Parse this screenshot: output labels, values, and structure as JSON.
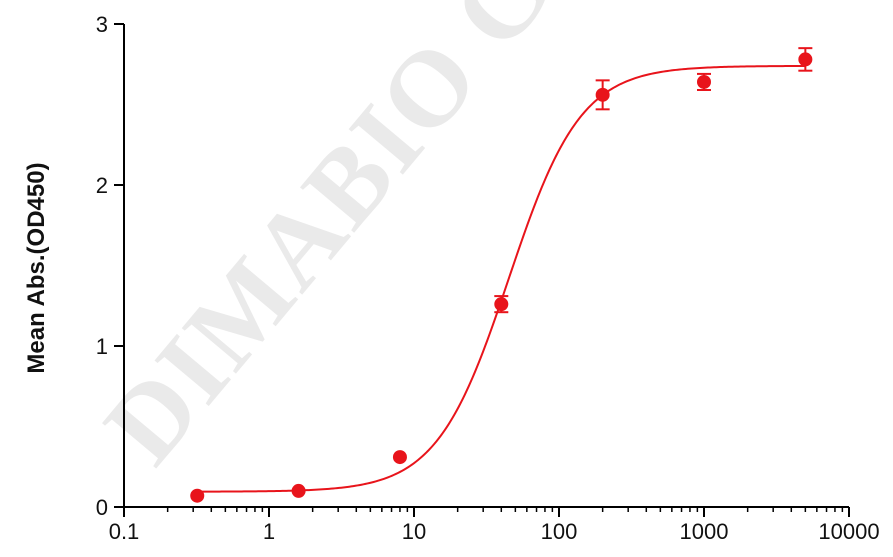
{
  "chart_data": {
    "type": "scatter",
    "title": "",
    "xlabel": "",
    "ylabel": "Mean Abs.(OD450)",
    "x_scale": "log",
    "xlim": [
      0.1,
      10000
    ],
    "ylim": [
      0,
      3
    ],
    "x_ticks": [
      "0.1",
      "1",
      "10",
      "100",
      "1000",
      "10000"
    ],
    "x_tick_values": [
      0.1,
      1,
      10,
      100,
      1000,
      10000
    ],
    "y_ticks": [
      "0",
      "1",
      "2",
      "3"
    ],
    "y_tick_values": [
      0,
      1,
      2,
      3
    ],
    "grid": false,
    "legend": "none",
    "watermark": "DIMABIO C",
    "series": [
      {
        "color": "#e8141b",
        "x": [
          0.32,
          1.6,
          8,
          40,
          200,
          1000,
          5000
        ],
        "y": [
          0.07,
          0.1,
          0.31,
          1.26,
          2.56,
          2.64,
          2.78
        ],
        "error": [
          0.0,
          0.0,
          0.0,
          0.05,
          0.09,
          0.05,
          0.07
        ]
      }
    ],
    "fit_curve": {
      "color": "#e8141b",
      "bottom": 0.095,
      "top": 2.74,
      "ec50": 45,
      "hill": 1.75
    }
  }
}
